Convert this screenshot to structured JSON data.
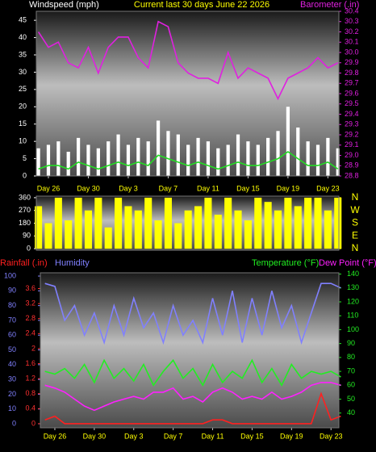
{
  "chart_data": [
    {
      "type": "line",
      "title": "Current last 30 days June 22 2026",
      "ylabel": "Windspeed (mph)",
      "x": [
        -1,
        0,
        1,
        2,
        3,
        4,
        5,
        6,
        7,
        8,
        9,
        10,
        11,
        12,
        13,
        14,
        15,
        16,
        17,
        18,
        19,
        20,
        21,
        22,
        23,
        24,
        25,
        26,
        27,
        28,
        29
      ],
      "xlim": [
        -1.21,
        29.1
      ],
      "xticks": [
        {
          "value": 0,
          "label": "Day 26"
        },
        {
          "value": 4,
          "label": "Day 30"
        },
        {
          "value": 8,
          "label": "Day 3"
        },
        {
          "value": 12,
          "label": "Day 7"
        },
        {
          "value": 16,
          "label": "Day 11"
        },
        {
          "value": 20,
          "label": "Day 15"
        },
        {
          "value": 24,
          "label": "Day 19"
        },
        {
          "value": 28,
          "label": "Day 23"
        }
      ],
      "ylim": [
        0,
        47.6
      ],
      "yticks": [
        0,
        5,
        10,
        15,
        20,
        25,
        30,
        35,
        40,
        45
      ],
      "y2lim": [
        28.8,
        30.4
      ],
      "y2ticks": [
        28.8,
        28.9,
        {
          "value": 29,
          "label": "29.0"
        },
        29.1,
        29.2,
        29.3,
        29.4,
        29.5,
        29.6,
        29.7,
        29.8,
        29.9,
        {
          "value": 30,
          "label": "30.0"
        },
        30.1,
        30.2,
        30.3,
        30.4
      ],
      "series": [
        {
          "type": "bar",
          "color": "#ffffff",
          "values": [
            8,
            9,
            10,
            7,
            11,
            9,
            8,
            10,
            12,
            9,
            11,
            10,
            16,
            13,
            12,
            9,
            11,
            10,
            8,
            9,
            12,
            10,
            9,
            11,
            13,
            20,
            14,
            10,
            9,
            11,
            8
          ]
        },
        {
          "type": "line",
          "color": "#22dd22",
          "values": [
            2,
            3,
            3,
            2,
            4,
            3,
            2,
            3,
            4,
            3,
            4,
            3,
            6,
            5,
            4,
            3,
            4,
            3,
            2,
            3,
            4,
            3,
            3,
            4,
            5,
            7,
            5,
            3,
            3,
            4,
            2
          ]
        },
        {
          "type": "line",
          "name": "Barometer (.in)",
          "axis": "y2",
          "color": "#e020e0",
          "values": [
            30.2,
            30.05,
            30.1,
            29.9,
            29.85,
            30.05,
            29.8,
            30.05,
            30.15,
            30.15,
            29.95,
            29.85,
            30.3,
            30.25,
            29.9,
            29.8,
            29.75,
            29.75,
            29.7,
            30.0,
            29.75,
            29.85,
            29.8,
            29.75,
            29.55,
            29.75,
            29.8,
            29.85,
            29.95,
            29.85,
            29.9
          ]
        }
      ]
    },
    {
      "type": "line",
      "x": [
        -1,
        0,
        1,
        2,
        3,
        4,
        5,
        6,
        7,
        8,
        9,
        10,
        11,
        12,
        13,
        14,
        15,
        16,
        17,
        18,
        19,
        20,
        21,
        22,
        23,
        24,
        25,
        26,
        27,
        28,
        29
      ],
      "xlim": [
        -1.21,
        29.1
      ],
      "ylim": [
        -11,
        371
      ],
      "yticks": [
        0,
        90,
        180,
        270,
        360
      ],
      "y2lim": [
        -11,
        371
      ],
      "y2ticks": [
        {
          "value": 360,
          "label": "N"
        },
        {
          "value": 270,
          "label": "W"
        },
        {
          "value": 180,
          "label": "S"
        },
        {
          "value": 90,
          "label": "E"
        },
        {
          "value": 0,
          "label": "N"
        }
      ],
      "series": [
        {
          "type": "bar",
          "color": "#ffff00",
          "values": [
            300,
            180,
            360,
            200,
            360,
            270,
            360,
            150,
            360,
            300,
            270,
            360,
            200,
            360,
            180,
            270,
            300,
            360,
            240,
            360,
            270,
            200,
            360,
            330,
            270,
            360,
            300,
            360,
            360,
            270,
            360
          ]
        }
      ]
    },
    {
      "type": "line",
      "x": [
        -1,
        0,
        1,
        2,
        3,
        4,
        5,
        6,
        7,
        8,
        9,
        10,
        11,
        12,
        13,
        14,
        15,
        16,
        17,
        18,
        19,
        20,
        21,
        22,
        23,
        24,
        25,
        26,
        27,
        28,
        29
      ],
      "xlim": [
        -1.47,
        28.8
      ],
      "xticks": [
        {
          "value": 0,
          "label": "Day 26"
        },
        {
          "value": 4,
          "label": "Day 30"
        },
        {
          "value": 8,
          "label": "Day 3"
        },
        {
          "value": 12,
          "label": "Day 7"
        },
        {
          "value": 16,
          "label": "Day 11"
        },
        {
          "value": 20,
          "label": "Day 15"
        },
        {
          "value": 24,
          "label": "Day 19"
        },
        {
          "value": 28,
          "label": "Day 23"
        }
      ],
      "ylim": [
        -2.7,
        102.2
      ],
      "yticks": [
        0,
        10,
        20,
        30,
        40,
        50,
        60,
        70,
        80,
        90,
        100
      ],
      "y2lim": [
        29.4,
        140.9
      ],
      "y2ticks": [
        40,
        50,
        60,
        70,
        80,
        90,
        100,
        110,
        120,
        130,
        140
      ],
      "y3lim": [
        -0.11,
        4.02
      ],
      "y3ticks": [
        0,
        0.4,
        0.8,
        1.2,
        1.6,
        2,
        2.4,
        2.8,
        3.2,
        3.6
      ],
      "series": [
        {
          "type": "line",
          "name": "Rainfall (.in)",
          "axis": "y3",
          "color": "#ff2020",
          "values": [
            0.1,
            0.2,
            0,
            0,
            0,
            0,
            0,
            0,
            0,
            0,
            0,
            0,
            0,
            0,
            0,
            0,
            0,
            0.1,
            0.1,
            0,
            0,
            0,
            0,
            0,
            0,
            0,
            0,
            0,
            0.8,
            0.1,
            0.2
          ]
        },
        {
          "type": "line",
          "name": "Humidity",
          "color": "#8080ff",
          "values": [
            95,
            93,
            70,
            80,
            60,
            75,
            55,
            80,
            60,
            85,
            65,
            75,
            55,
            80,
            60,
            70,
            55,
            85,
            60,
            90,
            55,
            85,
            60,
            90,
            65,
            80,
            55,
            75,
            95,
            95,
            92
          ]
        },
        {
          "type": "line",
          "name": "Temperature (°F)",
          "axis": "y2",
          "color": "#22ee22",
          "values": [
            70,
            68,
            72,
            65,
            75,
            62,
            78,
            65,
            72,
            63,
            75,
            60,
            70,
            78,
            65,
            72,
            60,
            75,
            62,
            70,
            65,
            78,
            62,
            72,
            60,
            75,
            65,
            70,
            68,
            70,
            66
          ]
        },
        {
          "type": "line",
          "name": "Dew Point (°F)",
          "axis": "y2",
          "color": "#ff20ff",
          "values": [
            60,
            58,
            55,
            50,
            45,
            42,
            45,
            48,
            50,
            52,
            50,
            55,
            55,
            58,
            50,
            52,
            48,
            55,
            58,
            55,
            50,
            52,
            50,
            55,
            50,
            52,
            55,
            60,
            62,
            62,
            60
          ]
        }
      ]
    }
  ]
}
